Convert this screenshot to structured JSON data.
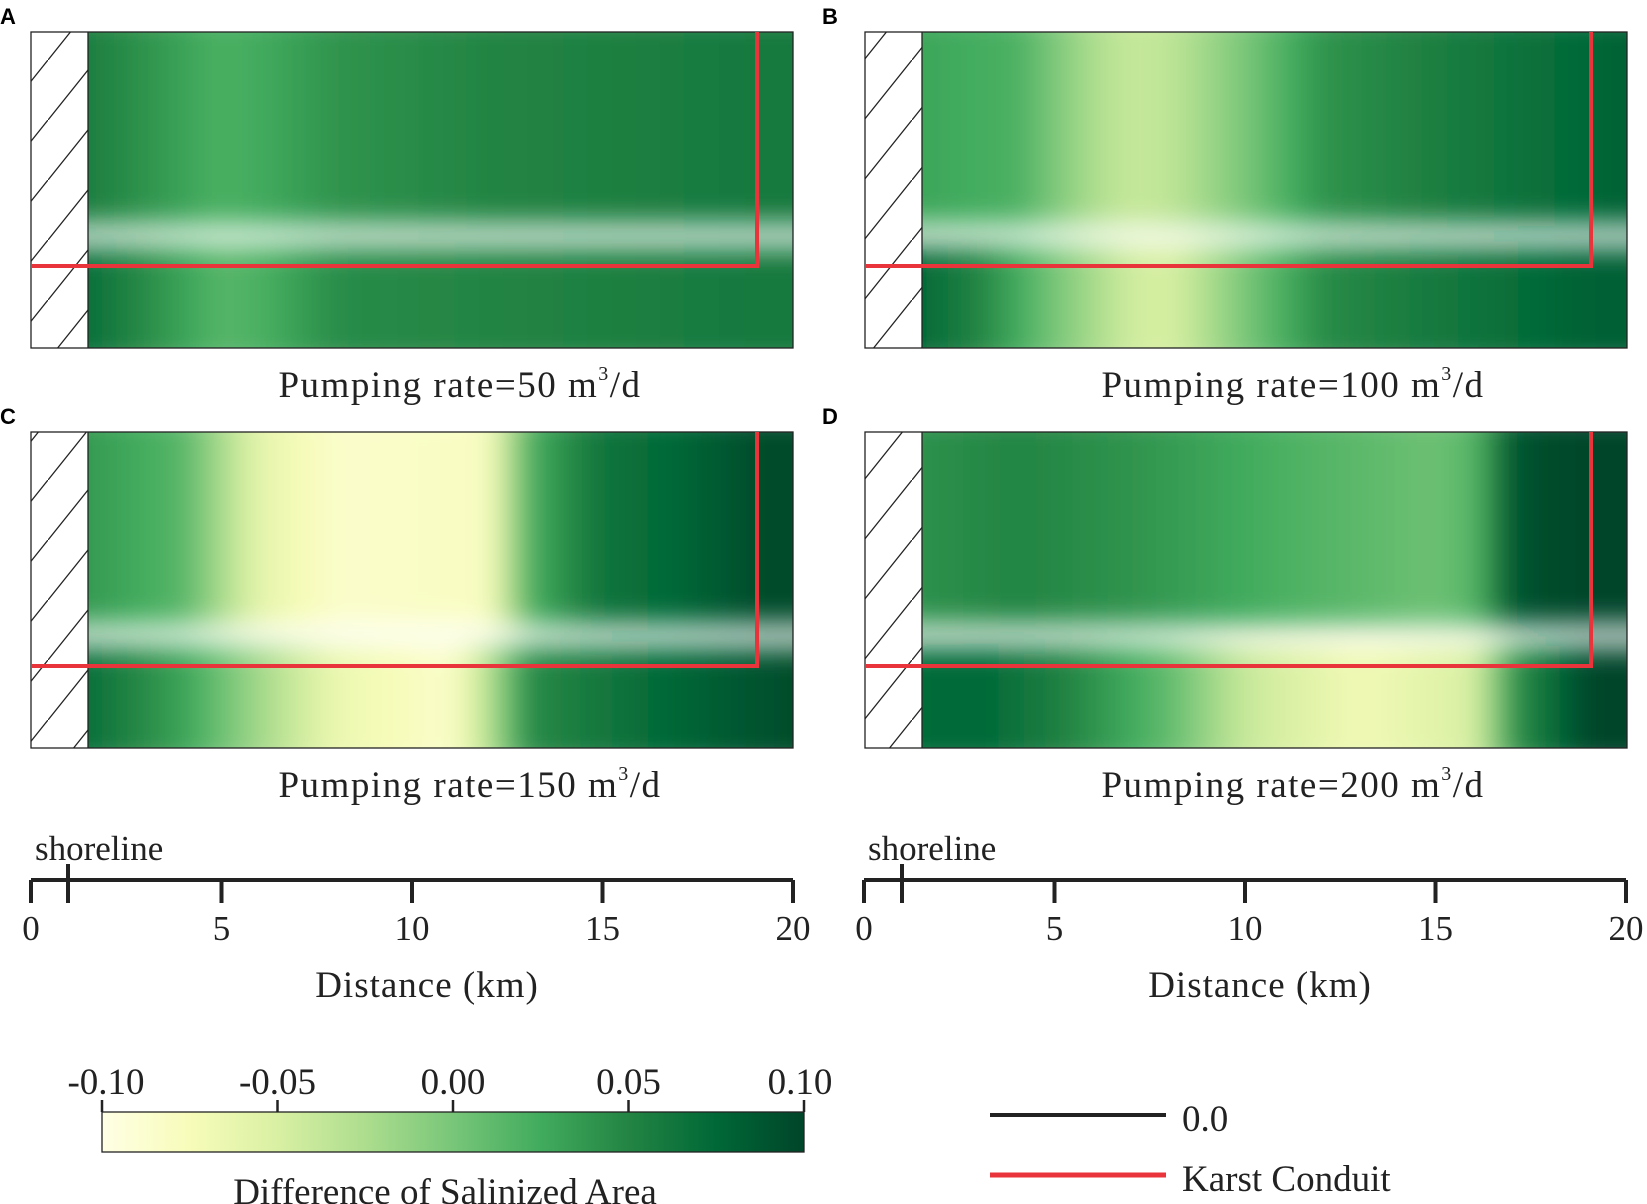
{
  "chart_data": {
    "type": "heatmap",
    "panels": [
      {
        "letter": "A",
        "caption_prefix": "Pumping rate=",
        "rate": "50",
        "unit_base": "m",
        "unit_sup": "3",
        "unit_tail": "/d",
        "upper_row": [
          [
            1,
            0.06
          ],
          [
            4,
            0.03
          ],
          [
            5,
            0.02
          ],
          [
            6,
            0.025
          ],
          [
            8,
            0.04
          ],
          [
            12,
            0.05
          ],
          [
            16,
            0.055
          ],
          [
            19,
            0.06
          ],
          [
            20,
            0.06
          ]
        ],
        "lower_row": [
          [
            1,
            0.075
          ],
          [
            4,
            0.03
          ],
          [
            5,
            0.015
          ],
          [
            6,
            0.02
          ],
          [
            8,
            0.045
          ],
          [
            12,
            0.05
          ],
          [
            16,
            0.055
          ],
          [
            19,
            0.06
          ],
          [
            20,
            0.06
          ]
        ]
      },
      {
        "letter": "B",
        "caption_prefix": "Pumping rate=",
        "rate": "100",
        "unit_base": "m",
        "unit_sup": "3",
        "unit_tail": "/d",
        "upper_row": [
          [
            1,
            0.03
          ],
          [
            4,
            0.02
          ],
          [
            6,
            -0.025
          ],
          [
            7,
            -0.04
          ],
          [
            8,
            -0.035
          ],
          [
            10,
            0.0
          ],
          [
            12,
            0.04
          ],
          [
            16,
            0.06
          ],
          [
            19,
            0.075
          ],
          [
            20,
            0.08
          ]
        ],
        "lower_row": [
          [
            1,
            0.08
          ],
          [
            3,
            0.05
          ],
          [
            5,
            0.0
          ],
          [
            7,
            -0.045
          ],
          [
            8,
            -0.05
          ],
          [
            10,
            0.0
          ],
          [
            12,
            0.045
          ],
          [
            16,
            0.065
          ],
          [
            19,
            0.08
          ],
          [
            20,
            0.08
          ]
        ]
      },
      {
        "letter": "C",
        "caption_prefix": "Pumping rate=",
        "rate": "150",
        "unit_base": "m",
        "unit_sup": "3",
        "unit_tail": "/d",
        "upper_row": [
          [
            1,
            0.04
          ],
          [
            4,
            0.015
          ],
          [
            6,
            -0.06
          ],
          [
            8,
            -0.085
          ],
          [
            12,
            -0.08
          ],
          [
            13,
            0.02
          ],
          [
            15,
            0.065
          ],
          [
            17,
            0.075
          ],
          [
            19,
            0.095
          ],
          [
            20,
            0.095
          ]
        ],
        "lower_row": [
          [
            1,
            0.075
          ],
          [
            4,
            0.03
          ],
          [
            6,
            -0.02
          ],
          [
            8,
            -0.065
          ],
          [
            11,
            -0.085
          ],
          [
            12,
            -0.03
          ],
          [
            13,
            0.045
          ],
          [
            16,
            0.07
          ],
          [
            19,
            0.09
          ],
          [
            20,
            0.095
          ]
        ]
      },
      {
        "letter": "D",
        "caption_prefix": "Pumping rate=",
        "rate": "200",
        "unit_base": "m",
        "unit_sup": "3",
        "unit_tail": "/d",
        "upper_row": [
          [
            1,
            0.04
          ],
          [
            4,
            0.05
          ],
          [
            7,
            0.04
          ],
          [
            11,
            0.02
          ],
          [
            15,
            0.005
          ],
          [
            16,
            0.015
          ],
          [
            17,
            0.09
          ],
          [
            19,
            0.1
          ],
          [
            20,
            0.1
          ]
        ],
        "lower_row": [
          [
            1,
            0.07
          ],
          [
            3,
            0.075
          ],
          [
            5,
            0.055
          ],
          [
            8,
            0.01
          ],
          [
            10,
            -0.04
          ],
          [
            13,
            -0.07
          ],
          [
            16,
            -0.05
          ],
          [
            17,
            0.04
          ],
          [
            19,
            0.1
          ],
          [
            20,
            0.1
          ]
        ]
      }
    ],
    "shoreline_km": 1,
    "conduit_horizontal_km": [
      0,
      19
    ],
    "xaxis": {
      "label": "Distance (km)",
      "shoreline_label": "shoreline",
      "xlim": [
        0,
        20
      ],
      "ticks": [
        0,
        5,
        10,
        15,
        20
      ],
      "tick_labels": [
        "0",
        "5",
        "10",
        "15",
        "20"
      ]
    },
    "colorbar": {
      "label": "Difference of Salinized Area",
      "vmin": -0.1,
      "vmax": 0.1,
      "ticks": [
        -0.1,
        -0.05,
        0.0,
        0.05,
        0.1
      ],
      "tick_labels": [
        "-0.10",
        "-0.05",
        "0.00",
        "0.05",
        "0.10"
      ],
      "colors": [
        "#ffffe5",
        "#f7fcb9",
        "#d9f0a3",
        "#addd8e",
        "#78c679",
        "#41ab5d",
        "#238443",
        "#006837",
        "#004529"
      ]
    },
    "legend": [
      {
        "label": "0.0",
        "color": "#222222"
      },
      {
        "label": "Karst Conduit",
        "color": "#e8343a"
      }
    ]
  }
}
